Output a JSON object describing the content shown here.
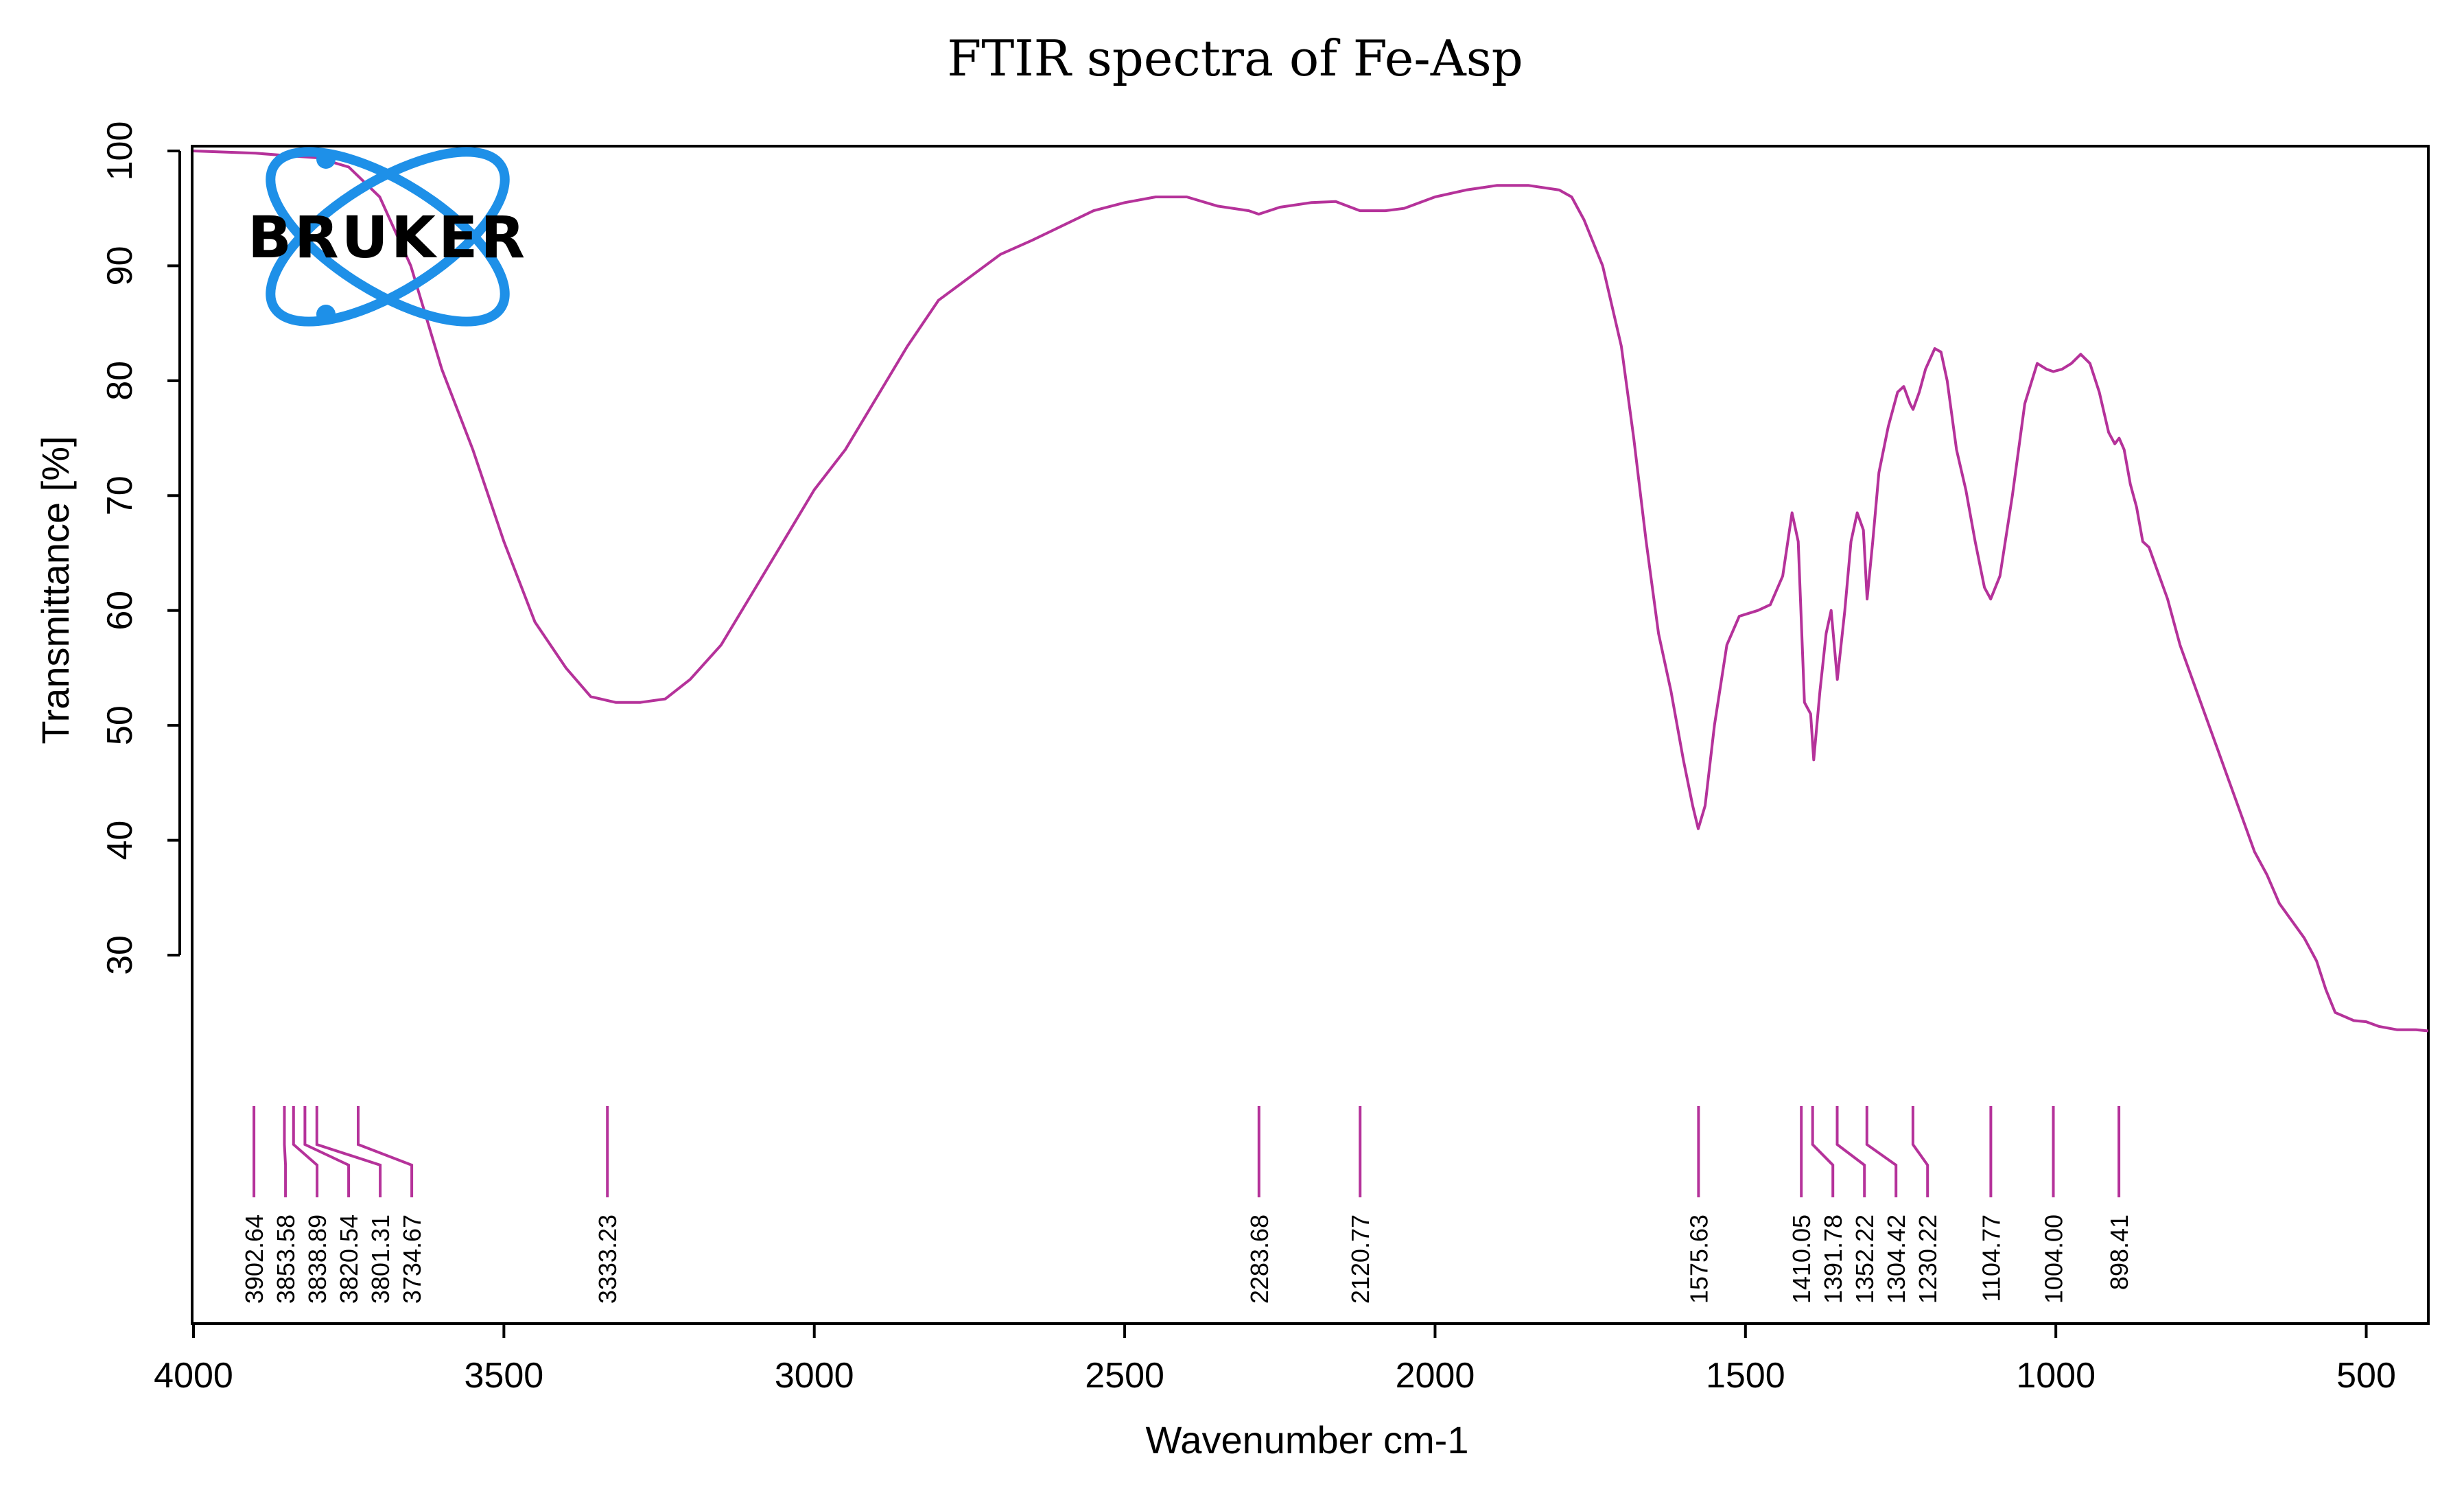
{
  "chart_data": {
    "type": "line",
    "title": "FTIR spectra of Fe-Asp",
    "xlabel": "Wavenumber cm-1",
    "ylabel": "Transmittance [%]",
    "xlim": [
      4000,
      400
    ],
    "ylim": [
      0,
      101
    ],
    "x_ticks": [
      4000,
      3500,
      3000,
      2500,
      2000,
      1500,
      1000,
      500
    ],
    "y_ticks": [
      30,
      40,
      50,
      60,
      70,
      80,
      90,
      100
    ],
    "series": [
      {
        "name": "Fe-Asp",
        "color": "#b5329a",
        "points": [
          [
            4000,
            100
          ],
          [
            3900,
            99.8
          ],
          [
            3850,
            99.6
          ],
          [
            3800,
            99.4
          ],
          [
            3750,
            98.6
          ],
          [
            3700,
            96
          ],
          [
            3650,
            90
          ],
          [
            3600,
            81
          ],
          [
            3550,
            74
          ],
          [
            3500,
            66
          ],
          [
            3450,
            59
          ],
          [
            3400,
            55
          ],
          [
            3360,
            52.5
          ],
          [
            3320,
            52
          ],
          [
            3280,
            52
          ],
          [
            3240,
            52.3
          ],
          [
            3200,
            54
          ],
          [
            3150,
            57
          ],
          [
            3100,
            61.5
          ],
          [
            3050,
            66
          ],
          [
            3000,
            70.5
          ],
          [
            2950,
            74
          ],
          [
            2900,
            78.5
          ],
          [
            2850,
            83
          ],
          [
            2800,
            87
          ],
          [
            2750,
            89
          ],
          [
            2700,
            91
          ],
          [
            2650,
            92.2
          ],
          [
            2600,
            93.5
          ],
          [
            2550,
            94.8
          ],
          [
            2500,
            95.5
          ],
          [
            2450,
            96
          ],
          [
            2400,
            96
          ],
          [
            2350,
            95.2
          ],
          [
            2300,
            94.8
          ],
          [
            2284,
            94.5
          ],
          [
            2250,
            95.1
          ],
          [
            2200,
            95.5
          ],
          [
            2160,
            95.6
          ],
          [
            2121,
            94.8
          ],
          [
            2080,
            94.8
          ],
          [
            2050,
            95
          ],
          [
            2000,
            96
          ],
          [
            1950,
            96.6
          ],
          [
            1900,
            97
          ],
          [
            1850,
            97
          ],
          [
            1800,
            96.6
          ],
          [
            1780,
            96
          ],
          [
            1760,
            94
          ],
          [
            1730,
            90
          ],
          [
            1700,
            83
          ],
          [
            1680,
            75
          ],
          [
            1660,
            66
          ],
          [
            1640,
            58
          ],
          [
            1620,
            53
          ],
          [
            1600,
            47
          ],
          [
            1585,
            43
          ],
          [
            1576,
            41
          ],
          [
            1565,
            43
          ],
          [
            1550,
            50
          ],
          [
            1530,
            57
          ],
          [
            1510,
            59.5
          ],
          [
            1480,
            60
          ],
          [
            1460,
            60.5
          ],
          [
            1440,
            63
          ],
          [
            1425,
            68.5
          ],
          [
            1415,
            66
          ],
          [
            1405,
            52
          ],
          [
            1395,
            51
          ],
          [
            1390,
            47
          ],
          [
            1380,
            53
          ],
          [
            1370,
            58
          ],
          [
            1362,
            60
          ],
          [
            1352,
            54
          ],
          [
            1340,
            60
          ],
          [
            1330,
            66
          ],
          [
            1320,
            68.5
          ],
          [
            1310,
            67
          ],
          [
            1304,
            61
          ],
          [
            1295,
            66
          ],
          [
            1285,
            72
          ],
          [
            1270,
            76
          ],
          [
            1255,
            79
          ],
          [
            1245,
            79.5
          ],
          [
            1235,
            78
          ],
          [
            1230,
            77.5
          ],
          [
            1220,
            79
          ],
          [
            1210,
            81
          ],
          [
            1195,
            82.8
          ],
          [
            1185,
            82.5
          ],
          [
            1175,
            80
          ],
          [
            1160,
            74
          ],
          [
            1145,
            70.5
          ],
          [
            1130,
            66
          ],
          [
            1115,
            62
          ],
          [
            1105,
            61
          ],
          [
            1090,
            63
          ],
          [
            1070,
            70
          ],
          [
            1050,
            78
          ],
          [
            1030,
            81.5
          ],
          [
            1015,
            81
          ],
          [
            1004,
            80.8
          ],
          [
            990,
            81
          ],
          [
            975,
            81.5
          ],
          [
            960,
            82.3
          ],
          [
            945,
            81.5
          ],
          [
            930,
            79
          ],
          [
            915,
            75.5
          ],
          [
            905,
            74.5
          ],
          [
            898,
            75
          ],
          [
            890,
            74
          ],
          [
            880,
            71
          ],
          [
            870,
            69
          ],
          [
            860,
            66
          ],
          [
            850,
            65.5
          ],
          [
            840,
            64
          ],
          [
            820,
            61
          ],
          [
            800,
            57
          ],
          [
            780,
            54
          ],
          [
            760,
            51
          ],
          [
            740,
            48
          ],
          [
            720,
            45
          ],
          [
            700,
            42
          ],
          [
            680,
            39
          ],
          [
            660,
            37
          ],
          [
            640,
            34.5
          ],
          [
            620,
            33
          ],
          [
            600,
            31.5
          ],
          [
            580,
            29.5
          ],
          [
            565,
            27
          ],
          [
            550,
            25
          ],
          [
            520,
            24.3
          ],
          [
            500,
            24.2
          ],
          [
            480,
            23.8
          ],
          [
            450,
            23.5
          ],
          [
            420,
            23.5
          ],
          [
            400,
            23.4
          ]
        ]
      }
    ],
    "peak_labels": [
      {
        "text": "3902.64",
        "position": 3902.64
      },
      {
        "text": "3853.58",
        "position": 3853.58
      },
      {
        "text": "3838.89",
        "position": 3838.89
      },
      {
        "text": "3820.54",
        "position": 3820.54
      },
      {
        "text": "3801.31",
        "position": 3801.31
      },
      {
        "text": "3734.67",
        "position": 3734.67
      },
      {
        "text": "3333.23",
        "position": 3333.23
      },
      {
        "text": "2283.68",
        "position": 2283.68
      },
      {
        "text": "2120.77",
        "position": 2120.77
      },
      {
        "text": "1575.63",
        "position": 1575.63
      },
      {
        "text": "1410.05",
        "position": 1410.05
      },
      {
        "text": "1391.78",
        "position": 1391.78
      },
      {
        "text": "1352.22",
        "position": 1352.22
      },
      {
        "text": "1304.42",
        "position": 1304.42
      },
      {
        "text": "1230.22",
        "position": 1230.22
      },
      {
        "text": "1104.77",
        "position": 1104.77
      },
      {
        "text": "1004.00",
        "position": 1004.0
      },
      {
        "text": "898.41",
        "position": 898.41
      }
    ],
    "logo": {
      "text": "BRUKER",
      "ring_color": "#1e90e8",
      "placement": "top-left"
    }
  }
}
